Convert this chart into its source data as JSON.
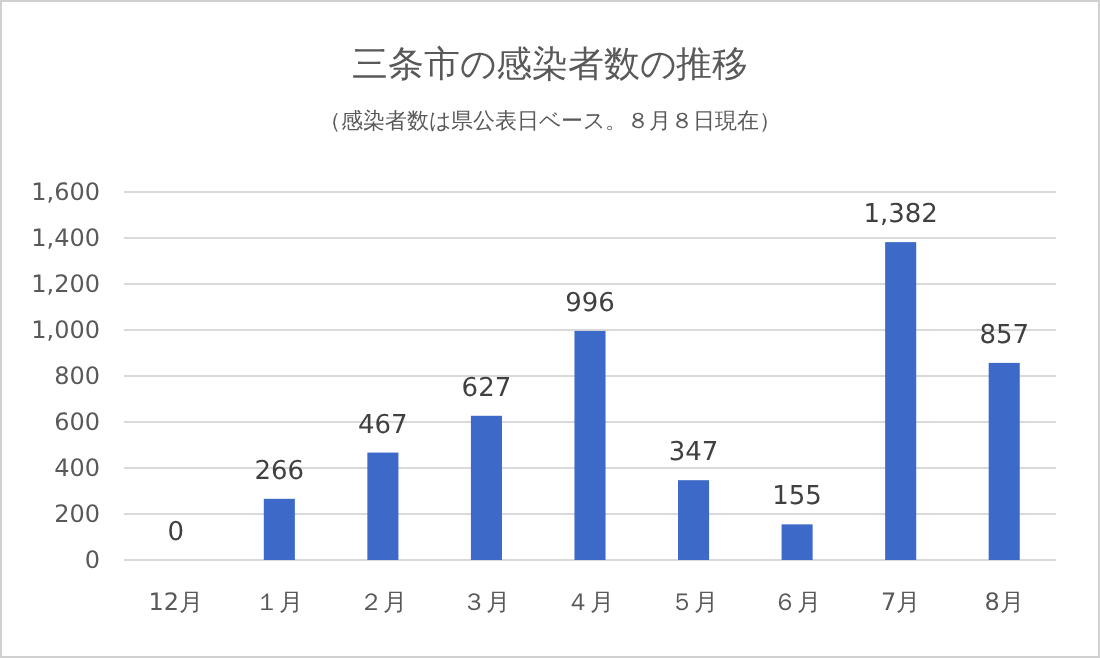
{
  "chart_data": {
    "type": "bar",
    "title": "三条市の感染者数の推移",
    "subtitle": "（感染者数は県公表日ベース。８月８日現在）",
    "categories": [
      "12月",
      "１月",
      "２月",
      "３月",
      "４月",
      "５月",
      "６月",
      "7月",
      "8月"
    ],
    "values": [
      0,
      266,
      467,
      627,
      996,
      347,
      155,
      1382,
      857
    ],
    "value_labels": [
      "0",
      "266",
      "467",
      "627",
      "996",
      "347",
      "155",
      "1,382",
      "857"
    ],
    "color": "#3d69c9",
    "ylim": [
      0,
      1600
    ],
    "yticks": [
      0,
      {
        "value": 200,
        "label": "200"
      },
      {
        "value": 400,
        "label": "400"
      },
      {
        "value": 600,
        "label": "600"
      },
      {
        "value": 800,
        "label": "800"
      },
      {
        "value": 1000,
        "label": "1,000"
      },
      {
        "value": 1200,
        "label": "1,200"
      },
      {
        "value": 1400,
        "label": "1,400"
      },
      {
        "value": 1600,
        "label": "1,600"
      }
    ],
    "grid": "y"
  }
}
